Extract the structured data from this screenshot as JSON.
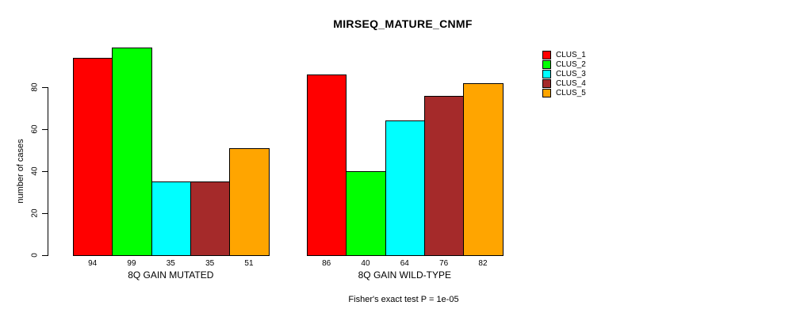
{
  "figure": {
    "title": "MIRSEQ_MATURE_CNMF",
    "footer": "Fisher's exact test P = 1e-05"
  },
  "chart_data": {
    "type": "bar",
    "title": "MIRSEQ_MATURE_CNMF",
    "xlabel": "",
    "ylabel": "number of cases",
    "ylim": [
      0,
      80
    ],
    "yticks": [
      0,
      20,
      40,
      60,
      80
    ],
    "grid": false,
    "legend_position": "right",
    "bar_value_labels": true,
    "groups": [
      {
        "label": "8Q GAIN MUTATED",
        "values": [
          94,
          99,
          35,
          35,
          51
        ]
      },
      {
        "label": "8Q GAIN WILD-TYPE",
        "values": [
          86,
          40,
          64,
          76,
          82
        ]
      }
    ],
    "series": [
      {
        "name": "CLUS_1",
        "color": "#FF0000",
        "values": [
          94,
          86
        ]
      },
      {
        "name": "CLUS_2",
        "color": "#00FF00",
        "values": [
          99,
          40
        ]
      },
      {
        "name": "CLUS_3",
        "color": "#00FFFF",
        "values": [
          35,
          64
        ]
      },
      {
        "name": "CLUS_4",
        "color": "#A52A2A",
        "values": [
          35,
          76
        ]
      },
      {
        "name": "CLUS_5",
        "color": "#FFA500",
        "values": [
          51,
          82
        ]
      }
    ],
    "subtitle_below": "Fisher's exact test P = 1e-05"
  }
}
